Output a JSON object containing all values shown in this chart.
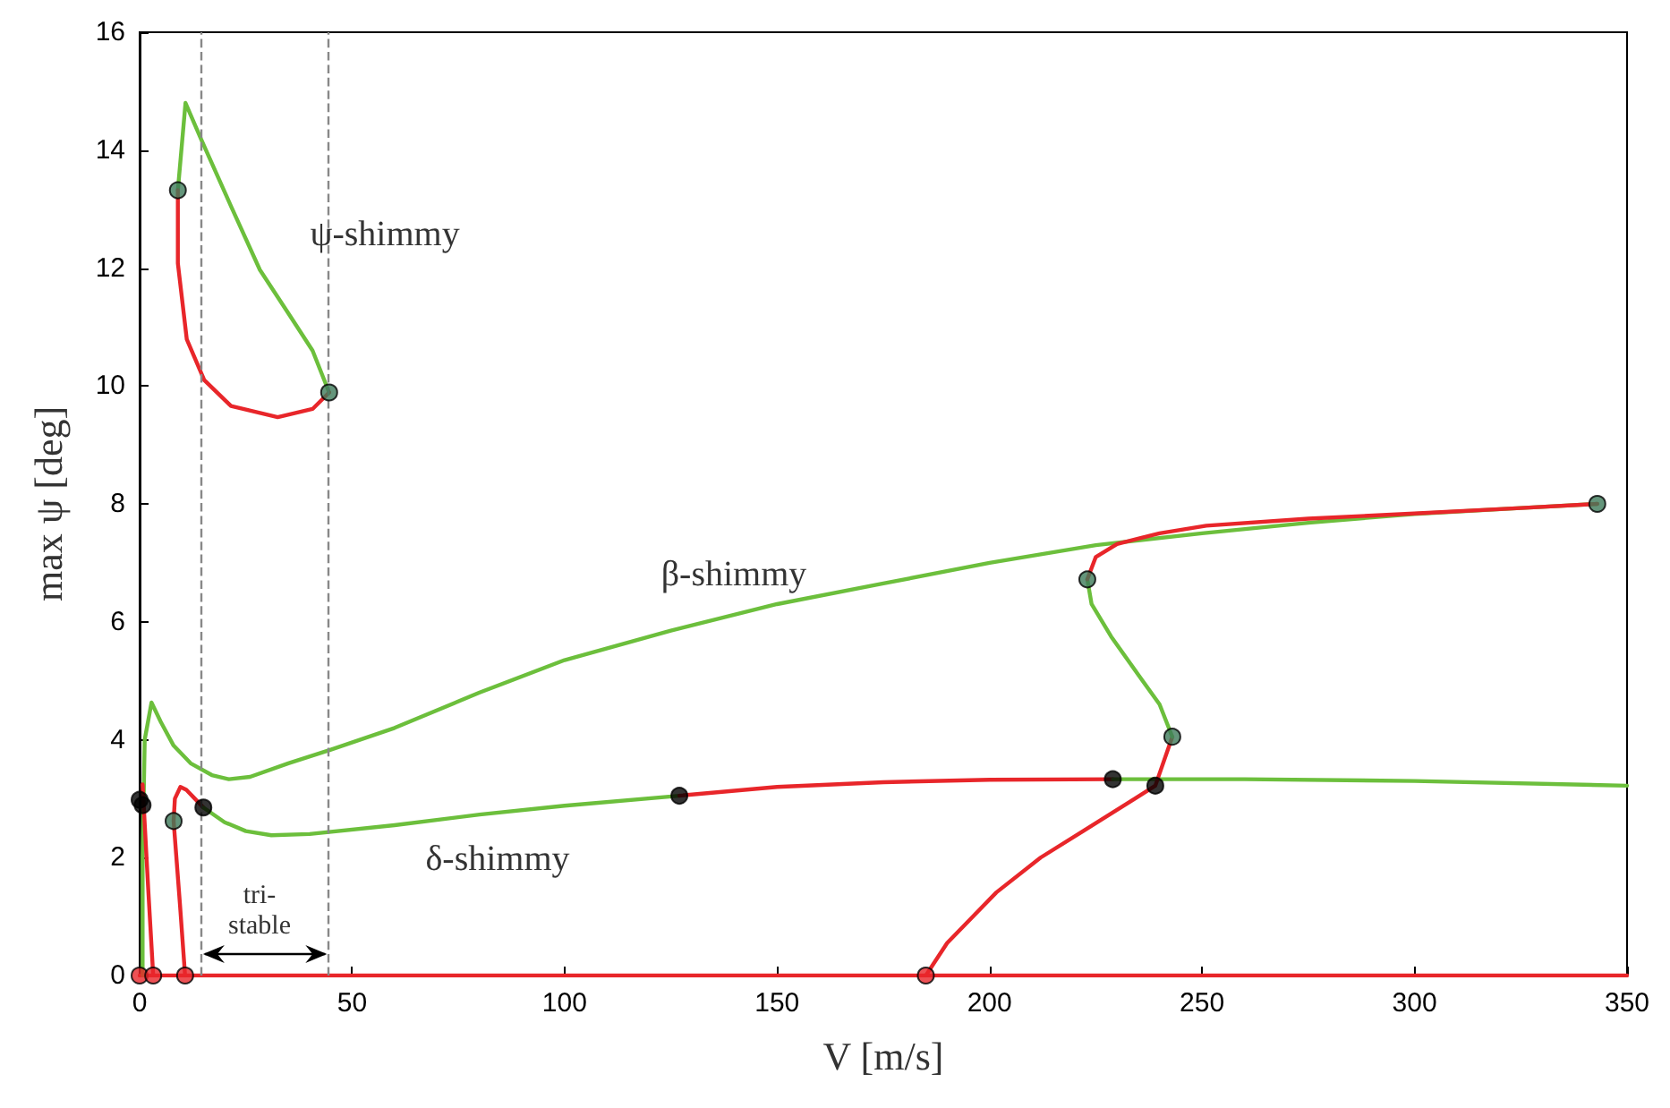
{
  "chart_data": {
    "type": "line",
    "xlabel": "V [m/s]",
    "ylabel": "max ψ [deg]",
    "xlim": [
      0,
      350
    ],
    "xticks": [
      0,
      50,
      100,
      150,
      200,
      250,
      300,
      350
    ],
    "ylim": [
      0,
      16
    ],
    "yticks": [
      0,
      2,
      4,
      6,
      8,
      10,
      12,
      14,
      16
    ],
    "grid": false,
    "marker": "none",
    "line_style": "solid",
    "series": [
      {
        "color": "#e8262a",
        "x": [
          0,
          350
        ],
        "values": [
          0,
          0
        ]
      },
      {
        "color": "#6cbf3c",
        "x": [
          0.7,
          0.7,
          1.2,
          2.8,
          5,
          8,
          12,
          17,
          21,
          26,
          35,
          45,
          60,
          80,
          100,
          125,
          150,
          175,
          200,
          225,
          250,
          275,
          300,
          325,
          343
        ],
        "values": [
          0,
          2,
          4.0,
          4.63,
          4.3,
          3.9,
          3.6,
          3.4,
          3.33,
          3.37,
          3.6,
          3.83,
          4.2,
          4.8,
          5.35,
          5.85,
          6.3,
          6.65,
          7.0,
          7.3,
          7.5,
          7.68,
          7.83,
          7.93,
          8.0
        ]
      },
      {
        "color": "#e8262a",
        "x": [
          3.2,
          2,
          0.7
        ],
        "values": [
          0,
          1.5,
          3.24
        ]
      },
      {
        "color": "#e8262a",
        "x": [
          10.7,
          9.5,
          8,
          8.3,
          9.6,
          11,
          13,
          15
        ],
        "values": [
          0,
          1.2,
          2.62,
          3.0,
          3.2,
          3.15,
          3.0,
          2.85
        ]
      },
      {
        "color": "#6cbf3c",
        "x": [
          15,
          20,
          25,
          31,
          40,
          60,
          80,
          100,
          127
        ],
        "values": [
          2.85,
          2.6,
          2.45,
          2.38,
          2.4,
          2.55,
          2.73,
          2.88,
          3.05
        ]
      },
      {
        "color": "#e8262a",
        "x": [
          127,
          150,
          175,
          200,
          229
        ],
        "values": [
          3.05,
          3.2,
          3.28,
          3.32,
          3.33
        ]
      },
      {
        "color": "#6cbf3c",
        "x": [
          229,
          260,
          300,
          350
        ],
        "values": [
          3.33,
          3.33,
          3.3,
          3.22
        ]
      },
      {
        "color": "#e8262a",
        "x": [
          185,
          190,
          201.6,
          212,
          222,
          232,
          239,
          243
        ],
        "values": [
          0,
          0.55,
          1.41,
          2.0,
          2.45,
          2.9,
          3.22,
          4.05
        ]
      },
      {
        "color": "#6cbf3c",
        "x": [
          243,
          240,
          235,
          228.6,
          224,
          223
        ],
        "values": [
          4.05,
          4.6,
          5.1,
          5.75,
          6.3,
          6.72
        ]
      },
      {
        "color": "#e8262a",
        "x": [
          223,
          225,
          230,
          240,
          251,
          275,
          301,
          325,
          343
        ],
        "values": [
          6.72,
          7.1,
          7.32,
          7.5,
          7.63,
          7.75,
          7.84,
          7.93,
          8.0
        ]
      },
      {
        "color": "#6cbf3c",
        "x": [
          9.0,
          10.8,
          14.5,
          21.5,
          28.3,
          35.3,
          40.7,
          44.6
        ],
        "values": [
          13.32,
          14.8,
          14.18,
          13.05,
          11.97,
          11.2,
          10.6,
          9.89
        ]
      },
      {
        "color": "#e8262a",
        "x": [
          9.0,
          9.0,
          11.1,
          15.2,
          21.5,
          32.5,
          40.7,
          44.6
        ],
        "values": [
          13.32,
          12.08,
          10.79,
          10.1,
          9.66,
          9.47,
          9.61,
          9.89
        ]
      },
      {
        "type": "scatter",
        "marker": "circle",
        "color": "#3d7a5a",
        "x": [
          9.0,
          44.6,
          8,
          223,
          243,
          343
        ],
        "values": [
          13.32,
          9.89,
          2.62,
          6.72,
          4.05,
          8.0
        ]
      },
      {
        "type": "scatter",
        "marker": "circle",
        "color": "#000000",
        "x": [
          0,
          0.7,
          15,
          127,
          229,
          239
        ],
        "values": [
          2.98,
          2.89,
          2.85,
          3.05,
          3.33,
          3.22
        ]
      },
      {
        "type": "scatter",
        "marker": "circle",
        "color": "#e8262a",
        "x": [
          0,
          3.2,
          10.7,
          185
        ],
        "values": [
          0,
          0,
          0,
          0
        ]
      }
    ],
    "ref_lines": [
      {
        "axis": "x",
        "value": 14.5,
        "color": "#888888",
        "line_style": "dashed"
      },
      {
        "axis": "x",
        "value": 44.5,
        "color": "#888888",
        "line_style": "dashed"
      }
    ],
    "annotations": [
      "ψ-shimmy",
      "β-shimmy",
      "δ-shimmy",
      "tri-\nstable"
    ]
  }
}
